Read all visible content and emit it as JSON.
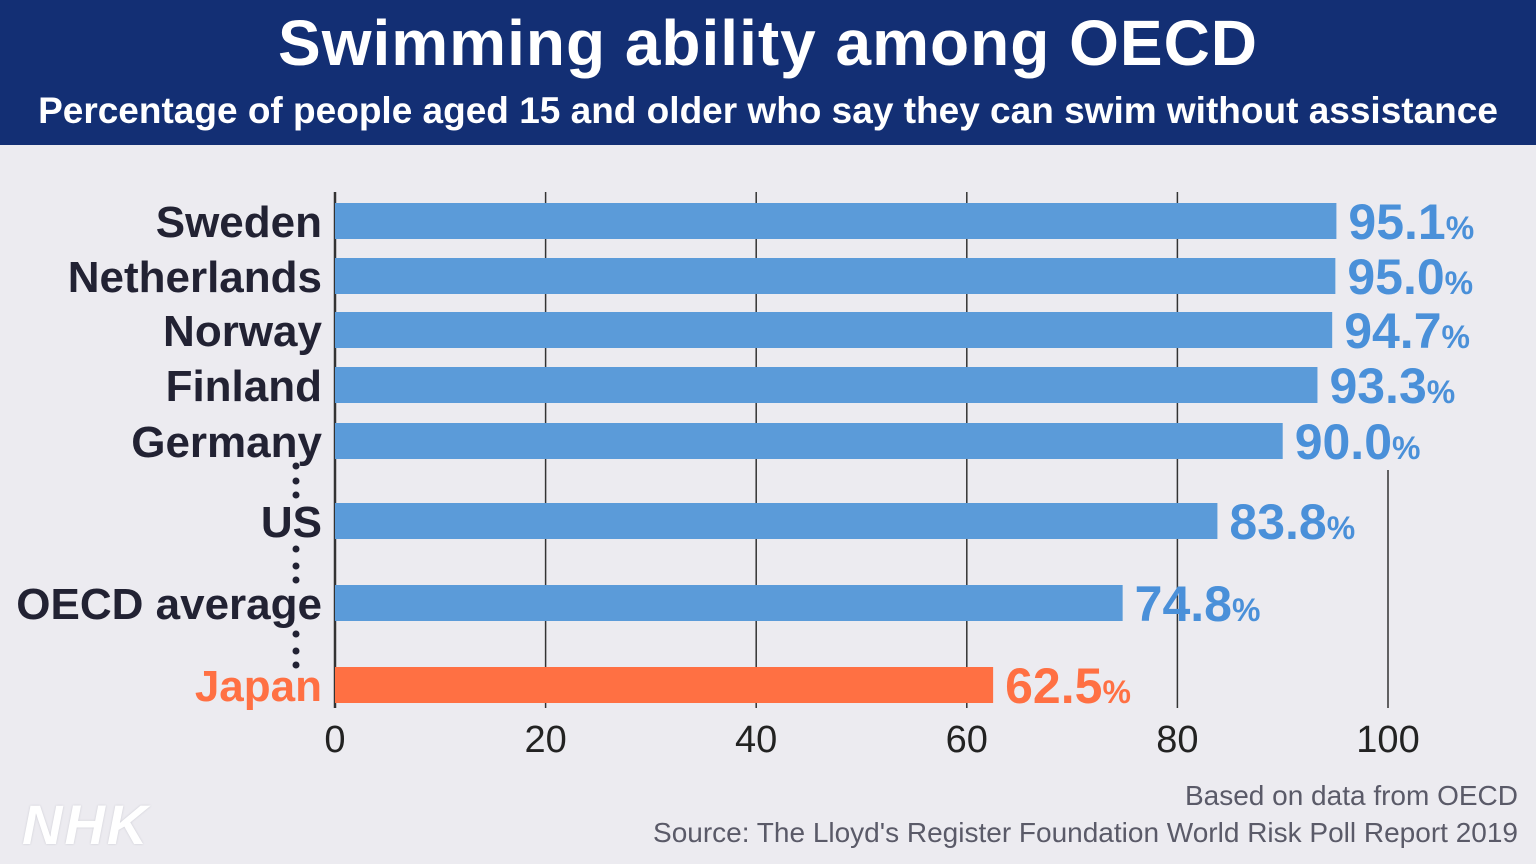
{
  "header": {
    "title": "Swimming ability among OECD",
    "subtitle": "Percentage of people aged 15 and older who say they can swim without assistance"
  },
  "chart_data": {
    "type": "bar",
    "orientation": "horizontal",
    "categories": [
      "Sweden",
      "Netherlands",
      "Norway",
      "Finland",
      "Germany",
      "US",
      "OECD average",
      "Japan"
    ],
    "values": [
      95.1,
      95.0,
      94.7,
      93.3,
      90.0,
      83.8,
      74.8,
      62.5
    ],
    "value_labels": [
      "95.1",
      "95.0",
      "94.7",
      "93.3",
      "90.0",
      "83.8",
      "74.8",
      "62.5"
    ],
    "value_unit": "%",
    "gap_after": [
      "Germany",
      "US",
      "OECD average"
    ],
    "highlight": "Japan",
    "xlim": [
      0,
      100
    ],
    "xticks": [
      0,
      20,
      40,
      60,
      80,
      100
    ],
    "grid": true,
    "colors": {
      "bar": "#5b9bd9",
      "highlight_bar": "#ff7043",
      "value_text": "#4a90d9",
      "highlight_text": "#ff7043",
      "category_text": "#222233",
      "grid": "#333333"
    }
  },
  "footer": {
    "note": "Based on data from OECD",
    "source": "Source: The Lloyd's Register Foundation World Risk Poll Report 2019",
    "logo": "NHK"
  }
}
